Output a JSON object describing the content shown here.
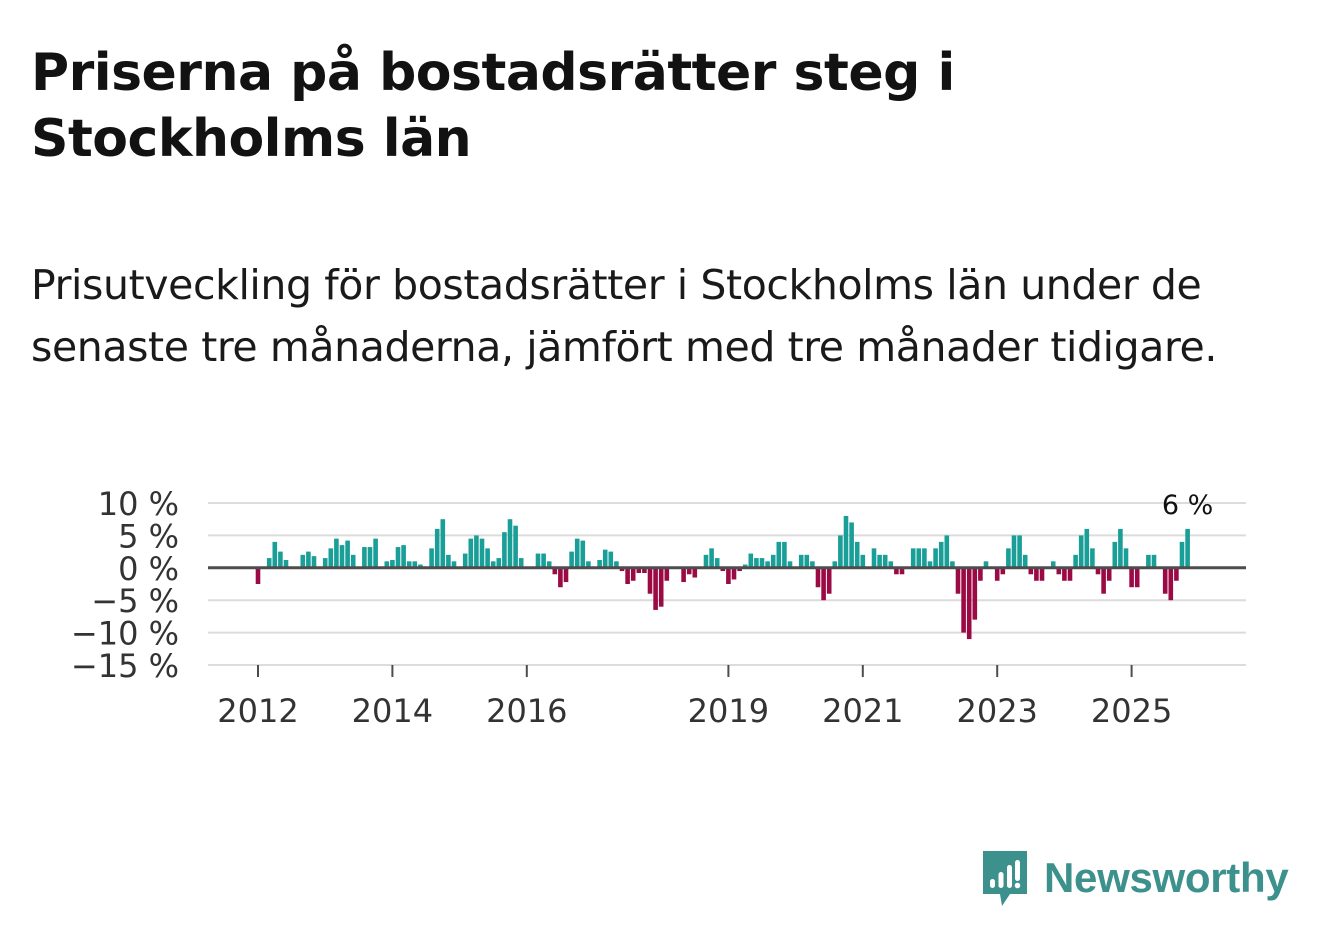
{
  "title": "Priserna på bostadsrätter steg i Stockholms län",
  "subtitle": "Prisutveckling för bostadsrätter i Stockholms län under de senaste tre månaderna, jämfört med tre månader tidigare.",
  "brand": {
    "name": "Newsworthy",
    "color": "#3c918c"
  },
  "colors": {
    "positive": "#1a9e98",
    "negative": "#9b0a44",
    "grid": "#dcdcdc",
    "zero": "#4d4d4d",
    "text": "#333333"
  },
  "chart_data": {
    "type": "bar",
    "title": "Priserna på bostadsrätter steg i Stockholms län",
    "xlabel": "",
    "ylabel": "",
    "ylim": [
      -15,
      10
    ],
    "yticks": [
      10,
      5,
      0,
      -5,
      -10,
      -15
    ],
    "ytick_labels": [
      "10 %",
      "5 %",
      "0 %",
      "−5 %",
      "−10 %",
      "−15 %"
    ],
    "x_start": "2012-01",
    "x_ticks": [
      {
        "label": "2012",
        "index": 0
      },
      {
        "label": "2014",
        "index": 24
      },
      {
        "label": "2016",
        "index": 48
      },
      {
        "label": "2019",
        "index": 84
      },
      {
        "label": "2021",
        "index": 108
      },
      {
        "label": "2023",
        "index": 132
      },
      {
        "label": "2025",
        "index": 156
      }
    ],
    "last_value_label": "6 %",
    "series": [
      {
        "name": "Prisutveckling",
        "values": [
          -2.5,
          0,
          1.5,
          4,
          2.5,
          1.2,
          0,
          0,
          2,
          2.5,
          1.8,
          0,
          1.5,
          3,
          4.5,
          3.5,
          4.2,
          2,
          0,
          3.2,
          3.2,
          4.5,
          0,
          1,
          1.2,
          3.2,
          3.5,
          1,
          1,
          0.5,
          0,
          3,
          6,
          7.5,
          2,
          1,
          0,
          2.2,
          4.5,
          5,
          4.5,
          3,
          1,
          1.5,
          5.5,
          7.5,
          6.5,
          1.5,
          0,
          0,
          2.2,
          2.2,
          1,
          -1,
          -3,
          -2.2,
          2.5,
          4.5,
          4.2,
          1,
          0,
          1.2,
          2.8,
          2.5,
          1,
          -0.5,
          -2.5,
          -2,
          -0.8,
          -0.8,
          -4,
          -6.5,
          -6,
          -2,
          0,
          0,
          -2.2,
          -1,
          -1.5,
          0,
          2,
          3,
          1.5,
          -0.5,
          -2.5,
          -1.8,
          -0.5,
          0.5,
          2.2,
          1.5,
          1.5,
          1,
          2,
          4,
          4,
          1,
          0,
          2,
          2,
          1,
          -3,
          -5,
          -4,
          1,
          5,
          8,
          7,
          4,
          2,
          0,
          3,
          2,
          2,
          1,
          -1,
          -1,
          0,
          3,
          3,
          3,
          1,
          3,
          4,
          5,
          1,
          -4,
          -10,
          -11,
          -8,
          -2,
          1,
          0,
          -2,
          -1,
          3,
          5,
          5,
          2,
          -1,
          -2,
          -2,
          0,
          1,
          -1,
          -2,
          -2,
          2,
          5,
          6,
          3,
          -1,
          -4,
          -2,
          4,
          6,
          3,
          -3,
          -3,
          0,
          2,
          2,
          0,
          -4,
          -5,
          -2,
          4,
          6
        ]
      }
    ]
  }
}
